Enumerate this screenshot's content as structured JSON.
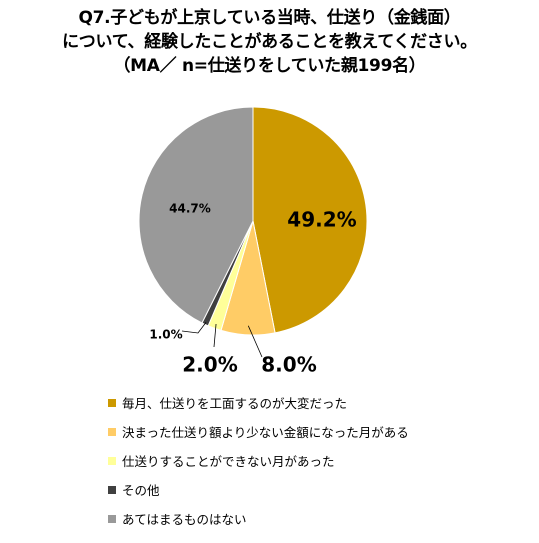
{
  "title": {
    "line1": "Q7.子どもが上京している当時、仕送り（金銭面）",
    "line2": "について、経験したことがあることを教えてください。",
    "line3": "（MA／ n=仕送りをしていた親199名）"
  },
  "chart_data": {
    "type": "pie",
    "start_angle_deg": 0,
    "direction": "clockwise",
    "slices": [
      {
        "label": "毎月、仕送りを工面するのが大変だった",
        "value": 49.2,
        "value_label": "49.2%",
        "color": "#cc9900"
      },
      {
        "label": "決まった仕送り額より少ない金額になった月がある",
        "value": 8.0,
        "value_label": "8.0%",
        "color": "#ffcc66"
      },
      {
        "label": "仕送りすることができない月があった",
        "value": 2.0,
        "value_label": "2.0%",
        "color": "#ffff99"
      },
      {
        "label": "その他",
        "value": 1.0,
        "value_label": "1.0%",
        "color": "#404040"
      },
      {
        "label": "あてはまるものはない",
        "value": 44.7,
        "value_label": "44.7%",
        "color": "#999999"
      }
    ],
    "legend_position": "bottom"
  }
}
